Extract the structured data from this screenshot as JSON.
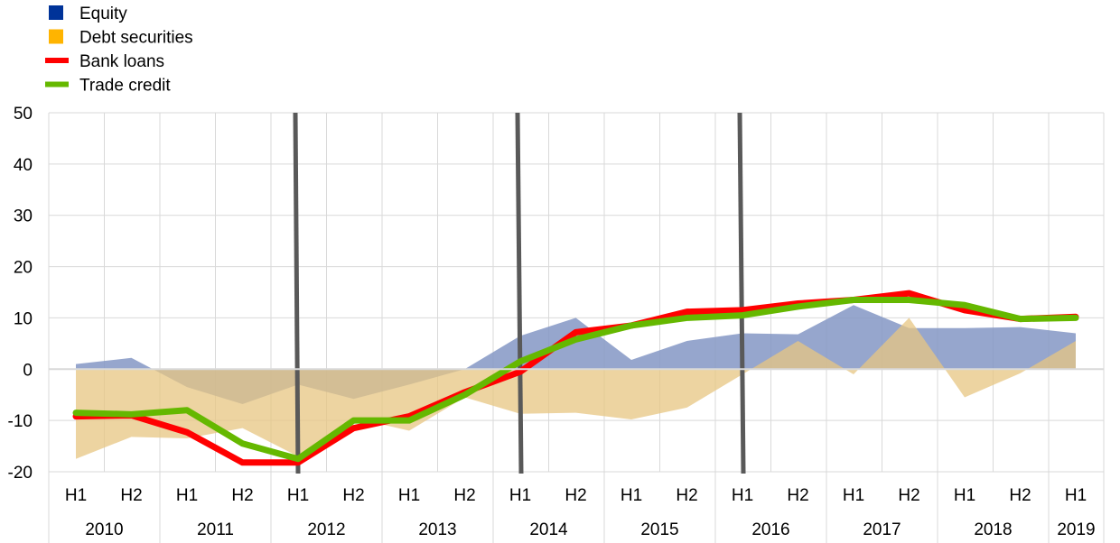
{
  "chart_data": {
    "type": "line",
    "title": "",
    "xlabel": "",
    "ylabel": "",
    "ylim": [
      -20,
      50
    ],
    "yticks": [
      -20,
      -10,
      0,
      10,
      20,
      30,
      40,
      50
    ],
    "grid": true,
    "legend_position": "top-left",
    "colors": {
      "equity": "#003399",
      "debt_securities": "#FFB400",
      "bank_loans": "#FF0000",
      "trade_credit": "#65B800",
      "marker_lines": "#595959",
      "grid": "#D9D9D9"
    },
    "categories": [
      "H1",
      "H2",
      "H1",
      "H2",
      "H1",
      "H2",
      "H1",
      "H2",
      "H1",
      "H2",
      "H1",
      "H2",
      "H1",
      "H2",
      "H1",
      "H2",
      "H1",
      "H2",
      "H1"
    ],
    "years": [
      {
        "label": "2010",
        "span": 2
      },
      {
        "label": "2011",
        "span": 2
      },
      {
        "label": "2012",
        "span": 2
      },
      {
        "label": "2013",
        "span": 2
      },
      {
        "label": "2014",
        "span": 2
      },
      {
        "label": "2015",
        "span": 2
      },
      {
        "label": "2016",
        "span": 2
      },
      {
        "label": "2017",
        "span": 2
      },
      {
        "label": "2018",
        "span": 2
      },
      {
        "label": "2019",
        "span": 1
      }
    ],
    "series": [
      {
        "name": "Equity",
        "kind": "area",
        "values": [
          1,
          2.2,
          -3.5,
          -6.8,
          -3,
          -5.8,
          -3,
          0,
          6.5,
          10,
          1.8,
          5.5,
          7,
          6.8,
          12.5,
          8,
          8,
          8.2,
          7
        ]
      },
      {
        "name": "Debt securities",
        "kind": "area",
        "values": [
          -17.5,
          -13.2,
          -13.5,
          -11.5,
          -17,
          -9.5,
          -12,
          -5.5,
          -8.7,
          -8.5,
          -9.8,
          -7.5,
          -1,
          5.5,
          -1,
          10,
          -5.5,
          -0.8,
          5.5
        ]
      },
      {
        "name": "Bank loans",
        "kind": "line",
        "values": [
          -9.2,
          -9,
          -12.3,
          -18.2,
          -18.2,
          -11.5,
          -9.2,
          -4.5,
          -0.5,
          7.2,
          8.5,
          11.2,
          11.5,
          12.8,
          13.5,
          14.8,
          11.5,
          9.8,
          10.2
        ]
      },
      {
        "name": "Trade credit",
        "kind": "line",
        "values": [
          -8.5,
          -8.8,
          -8,
          -14.5,
          -17.5,
          -10,
          -10,
          -5,
          1.5,
          5.8,
          8.5,
          10,
          10.5,
          12.2,
          13.5,
          13.5,
          12.5,
          9.8,
          10
        ]
      }
    ],
    "marker_lines": [
      {
        "top": [
          327,
          125
        ],
        "bottom": [
          330,
          525
        ]
      },
      {
        "top": [
          573,
          125
        ],
        "bottom": [
          577,
          525
        ]
      },
      {
        "top": [
          819,
          125
        ],
        "bottom": [
          823,
          525
        ]
      }
    ]
  }
}
